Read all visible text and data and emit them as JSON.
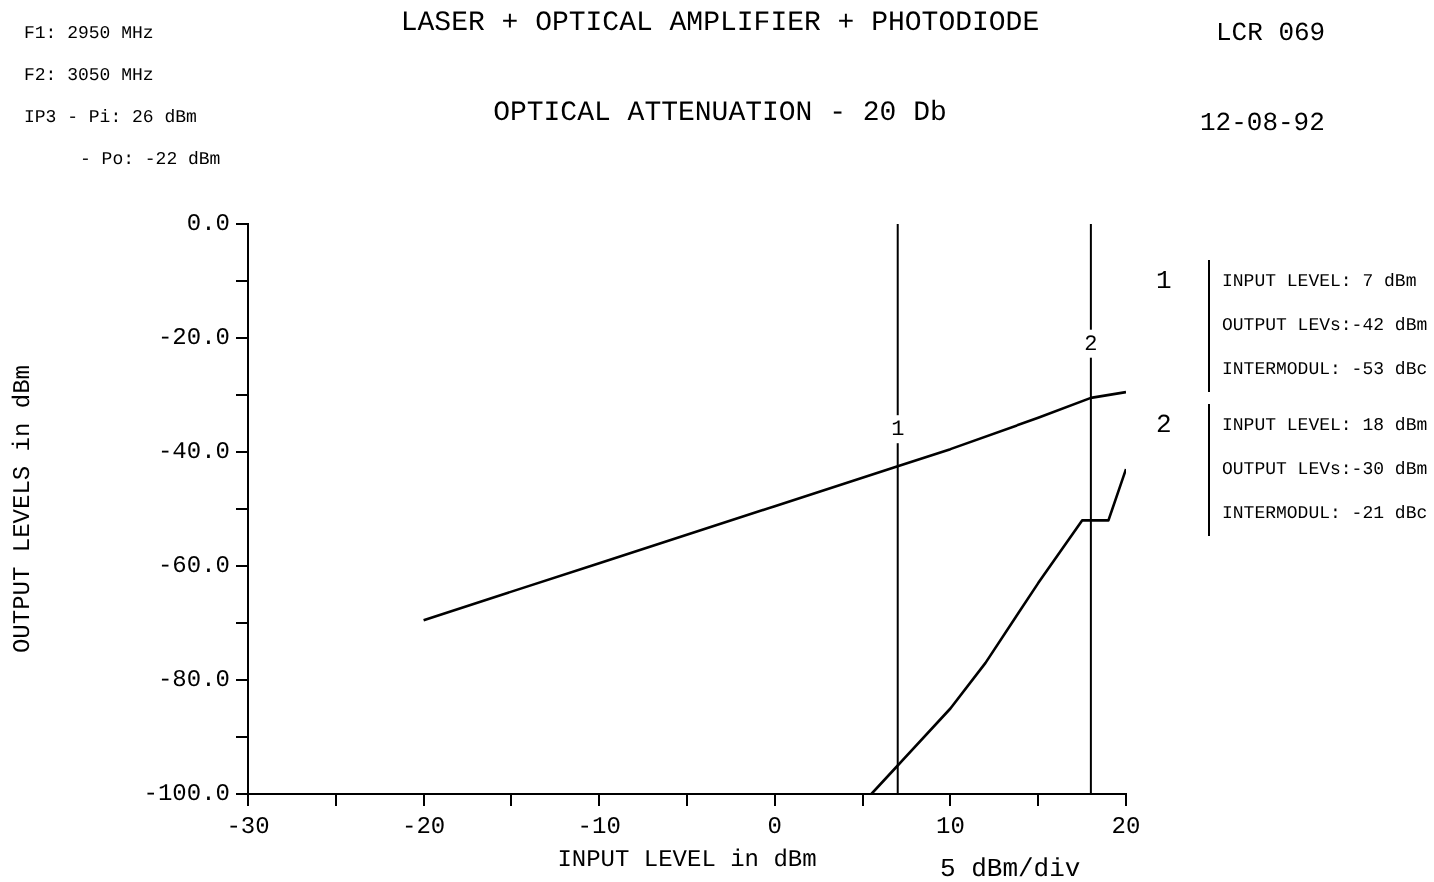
{
  "chart_data": {
    "type": "line",
    "title": "LASER + OPTICAL AMPLIFIER + PHOTODIODE",
    "subtitle": "OPTICAL ATTENUATION - 20 Db",
    "xlabel": "INPUT LEVEL in dBm",
    "ylabel": "OUTPUT LEVELS in dBm",
    "annotations": [
      "F1: 2950 MHz",
      "F2: 3050 MHz",
      "IP3  - Pi: 26 dBm",
      "- Po: -22 dBm",
      "LCR 069",
      "12-08-92",
      "1",
      "INPUT LEVEL: 7 dBm",
      "OUTPUT LEVs:-42 dBm",
      "INTERMODUL: -53 dBc",
      "2",
      "INPUT LEVEL: 18 dBm",
      "OUTPUT LEVs:-30 dBm",
      "INTERMODUL: -21 dBc",
      "5 dBm/div",
      {
        "text": "1",
        "x": 7,
        "y": -36
      },
      {
        "text": "2",
        "x": 18,
        "y": -21
      }
    ],
    "series": [
      {
        "color": "#000000",
        "x": [
          -20,
          -10,
          0,
          7,
          10,
          15,
          18,
          20
        ],
        "values": [
          -69.5,
          -59.5,
          -49.5,
          -42.5,
          -39.5,
          -34,
          -30.5,
          -29.5
        ]
      },
      {
        "color": "#000000",
        "x": [
          5.5,
          7,
          10,
          12,
          15,
          17.5,
          19,
          20
        ],
        "values": [
          -100,
          -95,
          -85,
          -77,
          -63,
          -52,
          -52,
          -43
        ]
      }
    ],
    "xlim": [
      -30,
      20
    ],
    "xticks": [
      -30,
      {
        "value": -25,
        "label": null
      },
      -20,
      {
        "value": -15,
        "label": null
      },
      -10,
      {
        "value": -5,
        "label": null
      },
      0,
      {
        "value": 5,
        "label": null
      },
      10,
      {
        "value": 15,
        "label": null
      },
      20
    ],
    "ylim": [
      -100,
      0
    ],
    "yticks": [
      {
        "value": -100,
        "label": "-100.0"
      },
      {
        "value": -90,
        "label": null
      },
      {
        "value": -80,
        "label": "-80.0"
      },
      {
        "value": -70,
        "label": null
      },
      {
        "value": -60,
        "label": "-60.0"
      },
      {
        "value": -50,
        "label": null
      },
      {
        "value": -40,
        "label": "-40.0"
      },
      {
        "value": -30,
        "label": null
      },
      {
        "value": -20,
        "label": "-20.0"
      },
      {
        "value": -10,
        "label": null
      },
      {
        "value": 0,
        "label": "0.0"
      }
    ],
    "ref_lines": [
      {
        "axis": "x",
        "value": 7,
        "color": "#000000"
      },
      {
        "axis": "x",
        "value": 18,
        "color": "#000000"
      }
    ],
    "grid": false,
    "legend": false,
    "marker": "none",
    "line_style": "solid"
  }
}
